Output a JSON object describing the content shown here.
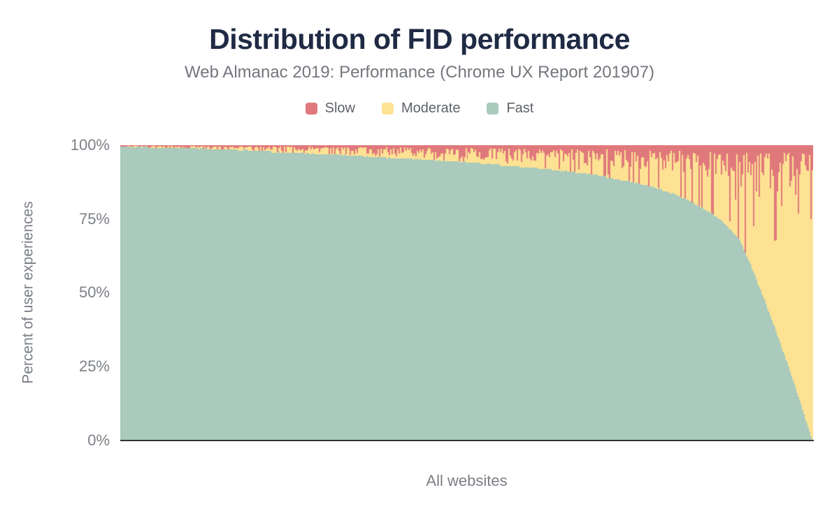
{
  "colors": {
    "background": "#ffffff",
    "title_text": "#1f2a44",
    "subtitle_text": "#73777d",
    "legend_text": "#5e6267",
    "tick_text": "#7d8187",
    "axis_line": "#30343a",
    "slow": "#e0797c",
    "moderate": "#fde293",
    "fast": "#a9cabc"
  },
  "chart_data": {
    "type": "stacked-bar",
    "title": "Distribution of FID performance",
    "subtitle": "Web Almanac 2019: Performance (Chrome UX Report 201907)",
    "xlabel": "All websites",
    "ylabel": "Percent of user experiences",
    "ylim": [
      0,
      100
    ],
    "ytick_labels": [
      "100%",
      "75%",
      "50%",
      "25%",
      "0%"
    ],
    "grid": false,
    "legend_position": "top-center",
    "x_axis_note": "one thin bar per website, sorted by descending percent of fast FID user experiences; each stack sums to 100%",
    "stack_total_percent": 100,
    "series": [
      {
        "name": "Slow",
        "color": "#e0797c"
      },
      {
        "name": "Moderate",
        "color": "#fde293"
      },
      {
        "name": "Fast",
        "color": "#a9cabc"
      }
    ],
    "n_bars": 496,
    "fast_percent_keypoints": [
      [
        0.0,
        99.4
      ],
      [
        0.05,
        99.2
      ],
      [
        0.1,
        98.9
      ],
      [
        0.15,
        98.5
      ],
      [
        0.2,
        98.0
      ],
      [
        0.25,
        97.5
      ],
      [
        0.3,
        97.0
      ],
      [
        0.35,
        96.3
      ],
      [
        0.4,
        95.6
      ],
      [
        0.45,
        94.9
      ],
      [
        0.5,
        94.2
      ],
      [
        0.55,
        93.3
      ],
      [
        0.6,
        92.3
      ],
      [
        0.65,
        91.0
      ],
      [
        0.7,
        89.4
      ],
      [
        0.75,
        87.0
      ],
      [
        0.78,
        85.0
      ],
      [
        0.8,
        83.5
      ],
      [
        0.82,
        81.5
      ],
      [
        0.84,
        79.0
      ],
      [
        0.86,
        76.0
      ],
      [
        0.88,
        72.0
      ],
      [
        0.895,
        68.0
      ],
      [
        0.91,
        60.0
      ],
      [
        0.925,
        51.0
      ],
      [
        0.94,
        42.0
      ],
      [
        0.955,
        32.0
      ],
      [
        0.97,
        22.0
      ],
      [
        0.985,
        11.0
      ],
      [
        0.995,
        3.5
      ],
      [
        1.0,
        0.3
      ]
    ],
    "slow_percent_base_keypoints": [
      [
        0.0,
        0.5
      ],
      [
        0.1,
        0.9
      ],
      [
        0.2,
        1.4
      ],
      [
        0.3,
        1.9
      ],
      [
        0.4,
        2.4
      ],
      [
        0.5,
        2.9
      ],
      [
        0.6,
        3.6
      ],
      [
        0.7,
        4.4
      ],
      [
        0.8,
        5.4
      ],
      [
        0.9,
        6.6
      ],
      [
        1.0,
        7.6
      ]
    ],
    "noise": {
      "seed": 11,
      "fast_jitter": 0.3,
      "fast_quantize_step": 0.5,
      "slow_quantize_step": 0.25,
      "slow_mult_min": 0.35,
      "slow_mult_span": 1.3,
      "slow_mult_pow": 1.6,
      "spike_prob_base": 0.05,
      "spike_prob_quadratic": 0.3,
      "spike_depth_base": 2.5,
      "spike_depth_cubic": 42,
      "spike_depth_pow": 1.5,
      "slow_max_percent": 44
    }
  }
}
